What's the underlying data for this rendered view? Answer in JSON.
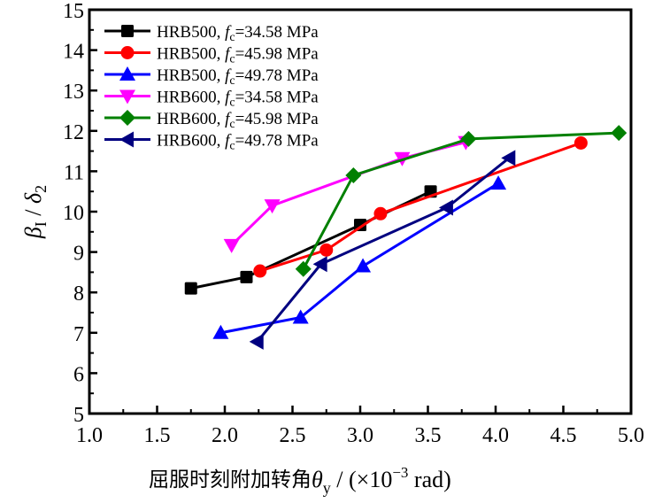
{
  "chart_data": {
    "type": "line",
    "title": "",
    "xlabel": {
      "cn": "屈服时刻附加转角",
      "symbol": "θ",
      "subscript": "y",
      "unit_prefix": " / (×10",
      "unit_exp": "−3",
      "unit_suffix": " rad)"
    },
    "ylabel": {
      "symbol1": "β",
      "sub1": "I",
      "sep": " / ",
      "symbol2": "δ",
      "sub2": "2"
    },
    "xlim": [
      1.0,
      5.0
    ],
    "ylim": [
      5,
      15
    ],
    "xticks": [
      "1.0",
      "1.5",
      "2.0",
      "2.5",
      "3.0",
      "3.5",
      "4.0",
      "4.5",
      "5.0"
    ],
    "yticks": [
      "5",
      "6",
      "7",
      "8",
      "9",
      "10",
      "11",
      "12",
      "13",
      "14",
      "15"
    ],
    "grid": false,
    "legend_position": "top-left",
    "series": [
      {
        "name_prefix": "HRB500, ",
        "fc_label": "f",
        "fc_sub": "c",
        "name_suffix": "=34.58 MPa",
        "color": "#000000",
        "marker": "square",
        "x": [
          1.75,
          2.16,
          3.0,
          3.52
        ],
        "y": [
          8.1,
          8.38,
          9.67,
          10.5
        ]
      },
      {
        "name_prefix": "HRB500, ",
        "fc_label": "f",
        "fc_sub": "c",
        "name_suffix": "=45.98 MPa",
        "color": "#ff0000",
        "marker": "circle",
        "x": [
          2.26,
          2.75,
          3.15,
          4.63
        ],
        "y": [
          8.53,
          9.05,
          9.95,
          11.7
        ]
      },
      {
        "name_prefix": "HRB500, ",
        "fc_label": "f",
        "fc_sub": "c",
        "name_suffix": "=49.78 MPa",
        "color": "#0000ff",
        "marker": "triangle-up",
        "x": [
          1.97,
          2.56,
          3.02,
          4.02
        ],
        "y": [
          7.0,
          7.38,
          8.65,
          10.7
        ]
      },
      {
        "name_prefix": "HRB600, ",
        "fc_label": "f",
        "fc_sub": "c",
        "name_suffix": "=34.58 MPa",
        "color": "#ff00ff",
        "marker": "triangle-down",
        "x": [
          2.05,
          2.35,
          3.31,
          3.78
        ],
        "y": [
          9.17,
          10.15,
          11.32,
          11.72
        ]
      },
      {
        "name_prefix": "HRB600, ",
        "fc_label": "f",
        "fc_sub": "c",
        "name_suffix": "=45.98 MPa",
        "color": "#008000",
        "marker": "diamond",
        "x": [
          2.58,
          2.95,
          3.8,
          4.91
        ],
        "y": [
          8.58,
          10.9,
          11.8,
          11.95
        ]
      },
      {
        "name_prefix": "HRB600, ",
        "fc_label": "f",
        "fc_sub": "c",
        "name_suffix": "=49.78 MPa",
        "color": "#000080",
        "marker": "triangle-left",
        "x": [
          2.24,
          2.71,
          3.64,
          4.1
        ],
        "y": [
          6.78,
          8.7,
          10.1,
          11.33
        ]
      }
    ]
  }
}
